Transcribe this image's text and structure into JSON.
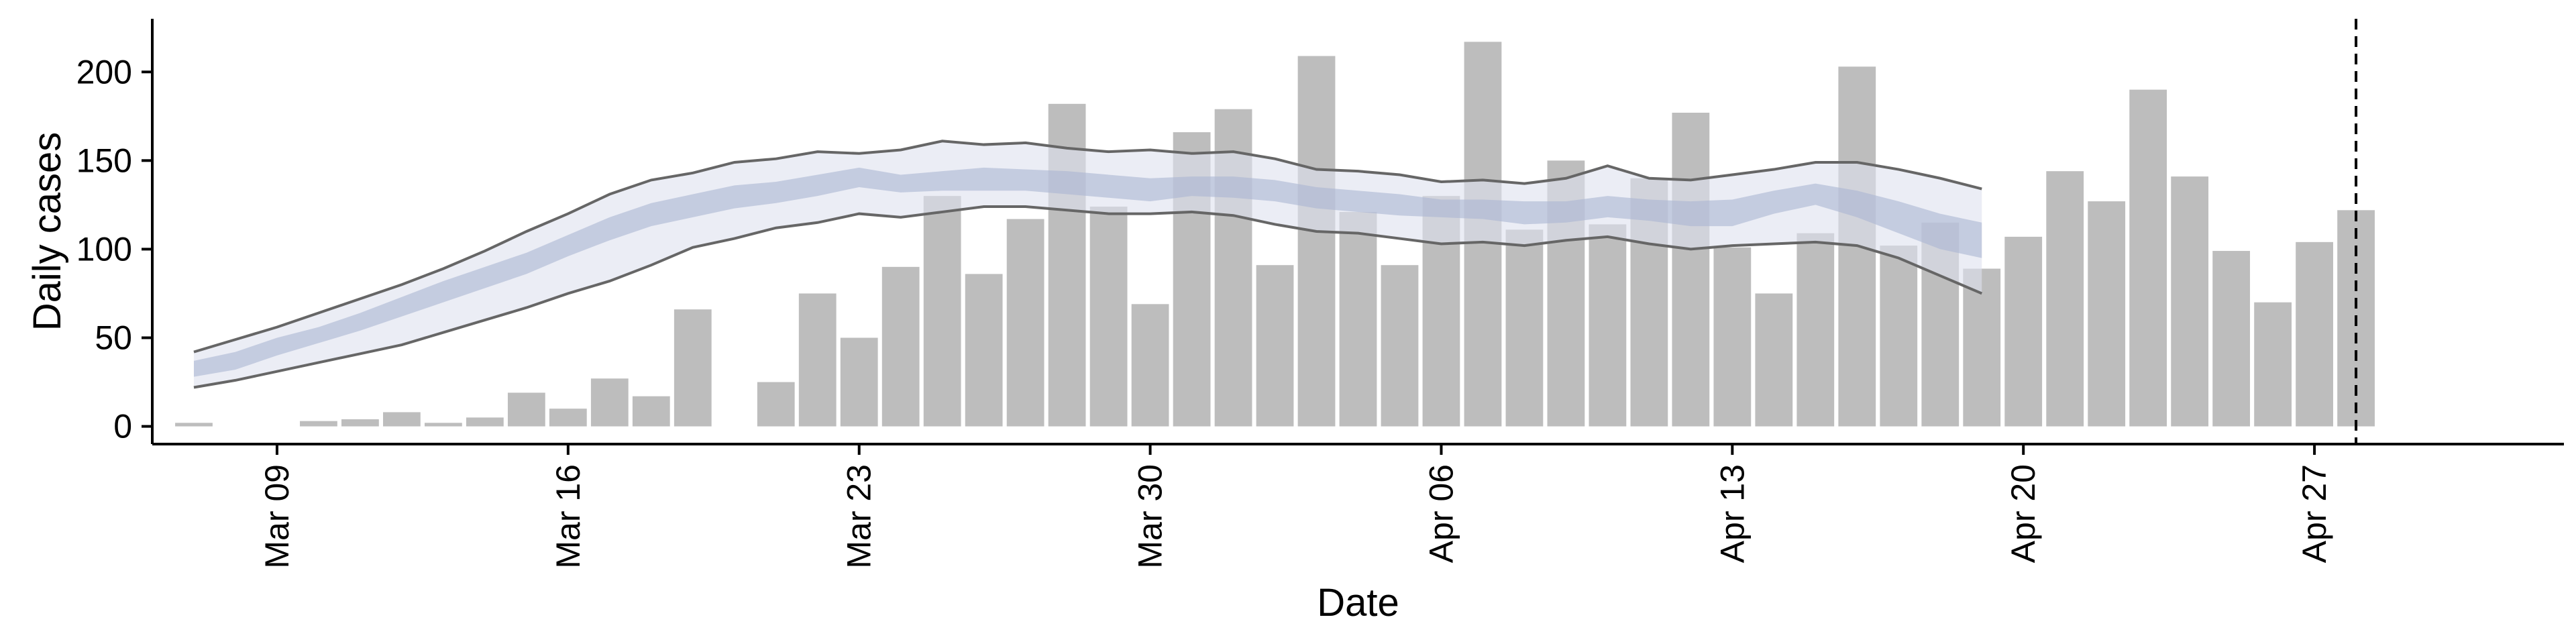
{
  "chart_data": {
    "type": "bar",
    "title": "",
    "xlabel": "Date",
    "ylabel": "Daily cases",
    "ylim": [
      -10,
      230
    ],
    "yticks": [
      0,
      50,
      100,
      150,
      200
    ],
    "grid": false,
    "x_start_date": "2020-03-07",
    "xticks": [
      {
        "date": "2020-03-09",
        "label": "Mar 09"
      },
      {
        "date": "2020-03-16",
        "label": "Mar 16"
      },
      {
        "date": "2020-03-23",
        "label": "Mar 23"
      },
      {
        "date": "2020-03-30",
        "label": "Mar 30"
      },
      {
        "date": "2020-04-06",
        "label": "Apr 06"
      },
      {
        "date": "2020-04-13",
        "label": "Apr 13"
      },
      {
        "date": "2020-04-20",
        "label": "Apr 20"
      },
      {
        "date": "2020-04-27",
        "label": "Apr 27"
      }
    ],
    "xlim_dates": [
      "2020-03-06",
      "2020-05-03"
    ],
    "bars": {
      "color": "#bdbdbd",
      "values": [
        2,
        null,
        null,
        3,
        4,
        8,
        2,
        5,
        19,
        10,
        27,
        17,
        66,
        null,
        25,
        75,
        50,
        90,
        130,
        86,
        117,
        182,
        124,
        69,
        166,
        179,
        91,
        209,
        121,
        91,
        130,
        217,
        111,
        150,
        114,
        140,
        177,
        101,
        75,
        109,
        203,
        102,
        115,
        89,
        107,
        144,
        127,
        190,
        141,
        99,
        70,
        104,
        122
      ]
    },
    "fit": {
      "outer_band_color": "#dde1ee",
      "inner_band_color": "#aab5d2",
      "line_color": "#666666",
      "upper": [
        42,
        49,
        56,
        64,
        72,
        80,
        89,
        99,
        110,
        120,
        131,
        139,
        143,
        149,
        151,
        155,
        154,
        156,
        161,
        159,
        160,
        157,
        155,
        156,
        154,
        155,
        151,
        145,
        144,
        142,
        138,
        139,
        137,
        140,
        147,
        140,
        139,
        142,
        145,
        149,
        149,
        145,
        140,
        134
      ],
      "inner_upper": [
        37,
        42,
        50,
        56,
        64,
        73,
        82,
        90,
        98,
        108,
        118,
        126,
        131,
        136,
        138,
        142,
        146,
        142,
        144,
        146,
        145,
        144,
        142,
        140,
        141,
        141,
        139,
        135,
        133,
        131,
        128,
        128,
        127,
        127,
        130,
        128,
        127,
        128,
        133,
        137,
        133,
        127,
        120,
        115
      ],
      "inner_lower": [
        28,
        32,
        40,
        47,
        54,
        62,
        70,
        78,
        86,
        96,
        105,
        113,
        118,
        123,
        126,
        130,
        135,
        132,
        133,
        133,
        133,
        131,
        129,
        127,
        130,
        129,
        127,
        123,
        121,
        119,
        118,
        117,
        114,
        115,
        118,
        116,
        113,
        113,
        120,
        125,
        118,
        109,
        100,
        95
      ],
      "lower": [
        22,
        26,
        31,
        36,
        41,
        46,
        53,
        60,
        67,
        75,
        82,
        91,
        101,
        106,
        112,
        115,
        120,
        118,
        121,
        124,
        124,
        122,
        120,
        120,
        121,
        119,
        114,
        110,
        109,
        106,
        103,
        104,
        102,
        105,
        107,
        103,
        100,
        102,
        103,
        104,
        102,
        95,
        85,
        75
      ]
    },
    "vline": {
      "date": "2020-04-28",
      "style": "dashed",
      "color": "#000000"
    }
  }
}
